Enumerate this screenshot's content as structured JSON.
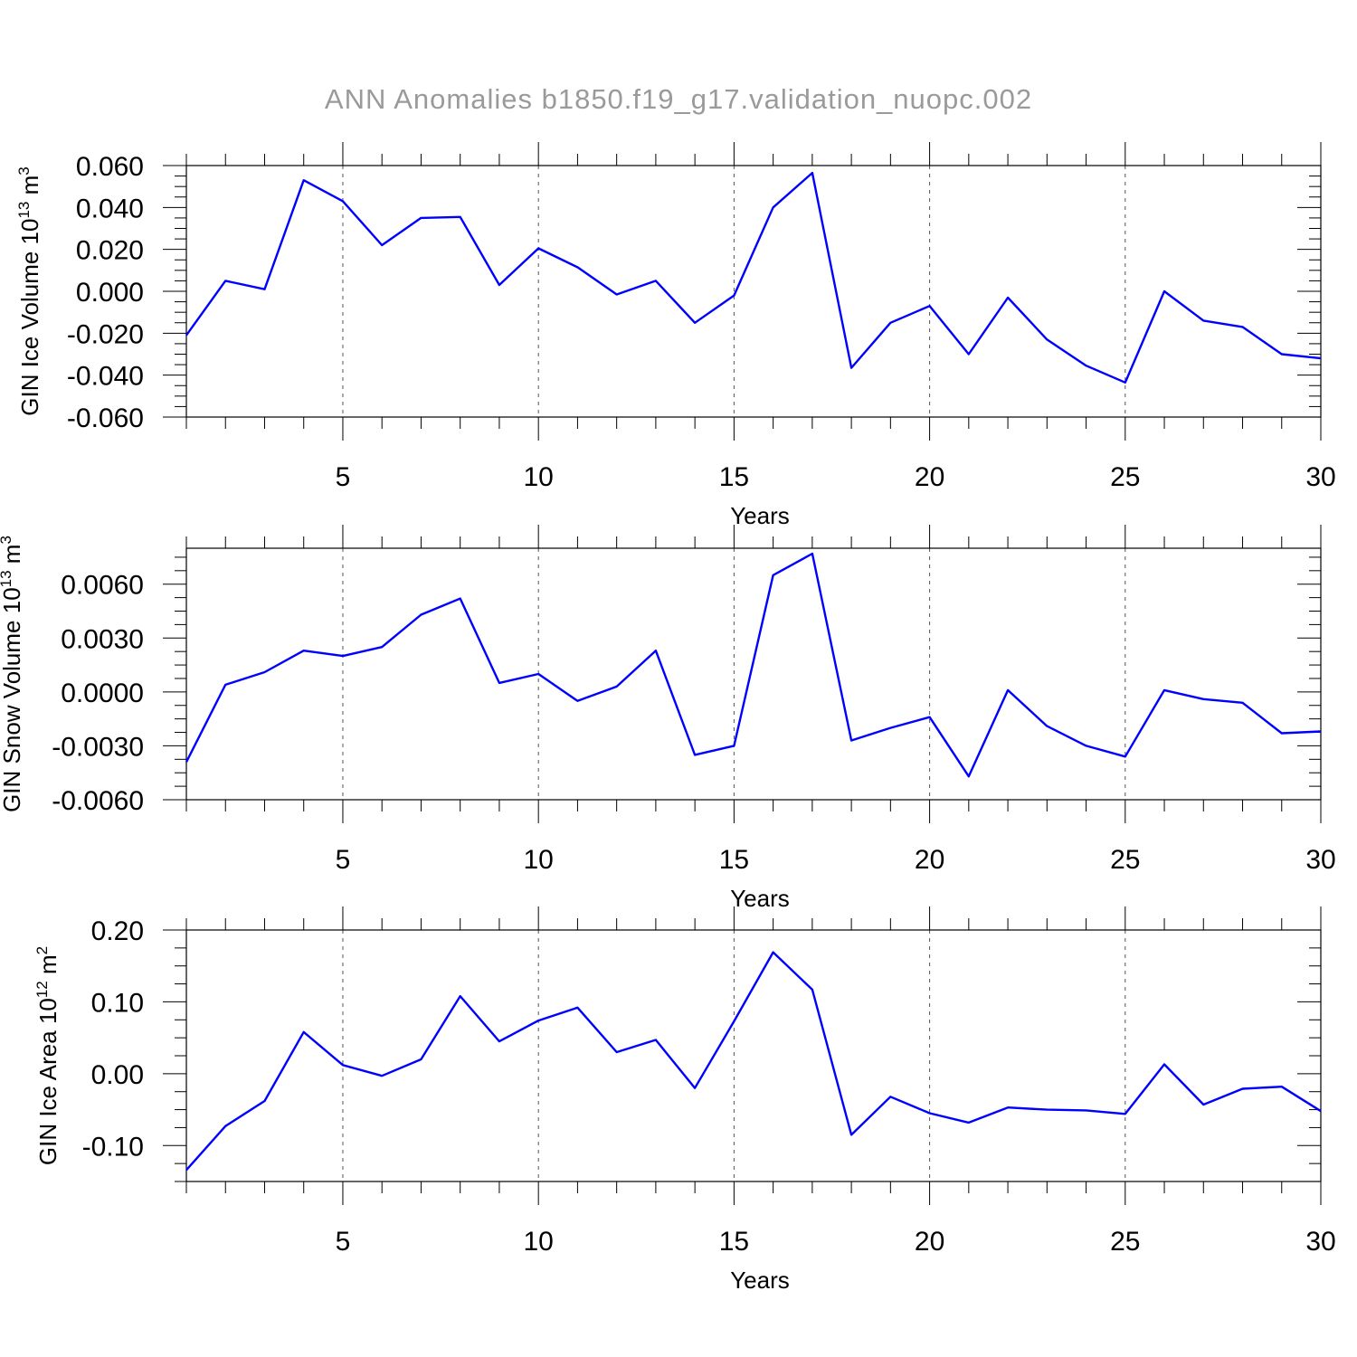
{
  "title": "ANN Anomalies b1850.f19_g17.validation_nuopc.002",
  "chart_data": [
    {
      "type": "line",
      "ylabel": {
        "main": "GIN Ice Volume 10",
        "sup": "13",
        "unit": " m",
        "unit_sup": "3"
      },
      "xlabel": "Years",
      "xlim": [
        1,
        30
      ],
      "xticks": [
        5,
        10,
        15,
        20,
        25,
        30
      ],
      "ylim": [
        -0.06,
        0.06
      ],
      "yticks": [
        -0.06,
        -0.04,
        -0.02,
        0.0,
        0.02,
        0.04,
        0.06
      ],
      "ytick_labels": [
        "-0.060",
        "-0.040",
        "-0.020",
        "0.000",
        "0.020",
        "0.040",
        "0.060"
      ],
      "grid": "dashed vertical at major x ticks",
      "color": "#0000ff",
      "x": [
        1,
        2,
        3,
        4,
        5,
        6,
        7,
        8,
        9,
        10,
        11,
        12,
        13,
        14,
        15,
        16,
        17,
        18,
        19,
        20,
        21,
        22,
        23,
        24,
        25,
        26,
        27,
        28,
        29,
        30
      ],
      "values": [
        -0.021,
        0.005,
        0.001,
        0.053,
        0.043,
        0.022,
        0.035,
        0.0355,
        0.003,
        0.0205,
        0.0115,
        -0.0015,
        0.005,
        -0.015,
        -0.002,
        0.04,
        0.0565,
        -0.0365,
        -0.015,
        -0.007,
        -0.03,
        -0.003,
        -0.023,
        -0.0355,
        -0.0435,
        0.0,
        -0.014,
        -0.017,
        -0.03,
        -0.032
      ]
    },
    {
      "type": "line",
      "ylabel": {
        "main": "GIN Snow Volume 10",
        "sup": "13",
        "unit": " m",
        "unit_sup": "3"
      },
      "xlabel": "Years",
      "xlim": [
        1,
        30
      ],
      "xticks": [
        5,
        10,
        15,
        20,
        25,
        30
      ],
      "ylim": [
        -0.006,
        0.008
      ],
      "yticks": [
        -0.006,
        -0.003,
        0.0,
        0.003,
        0.006
      ],
      "ytick_labels": [
        "-0.0060",
        "-0.0030",
        "0.0000",
        "0.0030",
        "0.0060"
      ],
      "grid": "dashed vertical at major x ticks",
      "color": "#0000ff",
      "x": [
        1,
        2,
        3,
        4,
        5,
        6,
        7,
        8,
        9,
        10,
        11,
        12,
        13,
        14,
        15,
        16,
        17,
        18,
        19,
        20,
        21,
        22,
        23,
        24,
        25,
        26,
        27,
        28,
        29,
        30
      ],
      "values": [
        -0.0039,
        0.0004,
        0.0011,
        0.0023,
        0.002,
        0.0025,
        0.0043,
        0.0052,
        0.0005,
        0.001,
        -0.0005,
        0.0003,
        0.0023,
        -0.0035,
        -0.003,
        0.0065,
        0.0077,
        -0.0027,
        -0.002,
        -0.0014,
        -0.0047,
        0.0001,
        -0.0019,
        -0.003,
        -0.0036,
        0.0001,
        -0.0004,
        -0.0006,
        -0.0023,
        -0.0022
      ]
    },
    {
      "type": "line",
      "ylabel": {
        "main": "GIN Ice Area 10",
        "sup": "12",
        "unit": " m",
        "unit_sup": "2"
      },
      "xlabel": "Years",
      "xlim": [
        1,
        30
      ],
      "xticks": [
        5,
        10,
        15,
        20,
        25,
        30
      ],
      "ylim": [
        -0.15,
        0.2
      ],
      "yticks": [
        -0.1,
        0.0,
        0.1,
        0.2
      ],
      "ytick_labels": [
        "-0.10",
        "0.00",
        "0.10",
        "0.20"
      ],
      "grid": "dashed vertical at major x ticks",
      "color": "#0000ff",
      "x": [
        1,
        2,
        3,
        4,
        5,
        6,
        7,
        8,
        9,
        10,
        11,
        12,
        13,
        14,
        15,
        16,
        17,
        18,
        19,
        20,
        21,
        22,
        23,
        24,
        25,
        26,
        27,
        28,
        29,
        30
      ],
      "values": [
        -0.134,
        -0.073,
        -0.038,
        0.058,
        0.012,
        -0.003,
        0.02,
        0.108,
        0.045,
        0.074,
        0.092,
        0.03,
        0.047,
        -0.02,
        0.073,
        0.169,
        0.117,
        -0.085,
        -0.032,
        -0.055,
        -0.068,
        -0.047,
        -0.05,
        -0.051,
        -0.056,
        0.013,
        -0.043,
        -0.021,
        -0.018,
        -0.052
      ]
    }
  ]
}
